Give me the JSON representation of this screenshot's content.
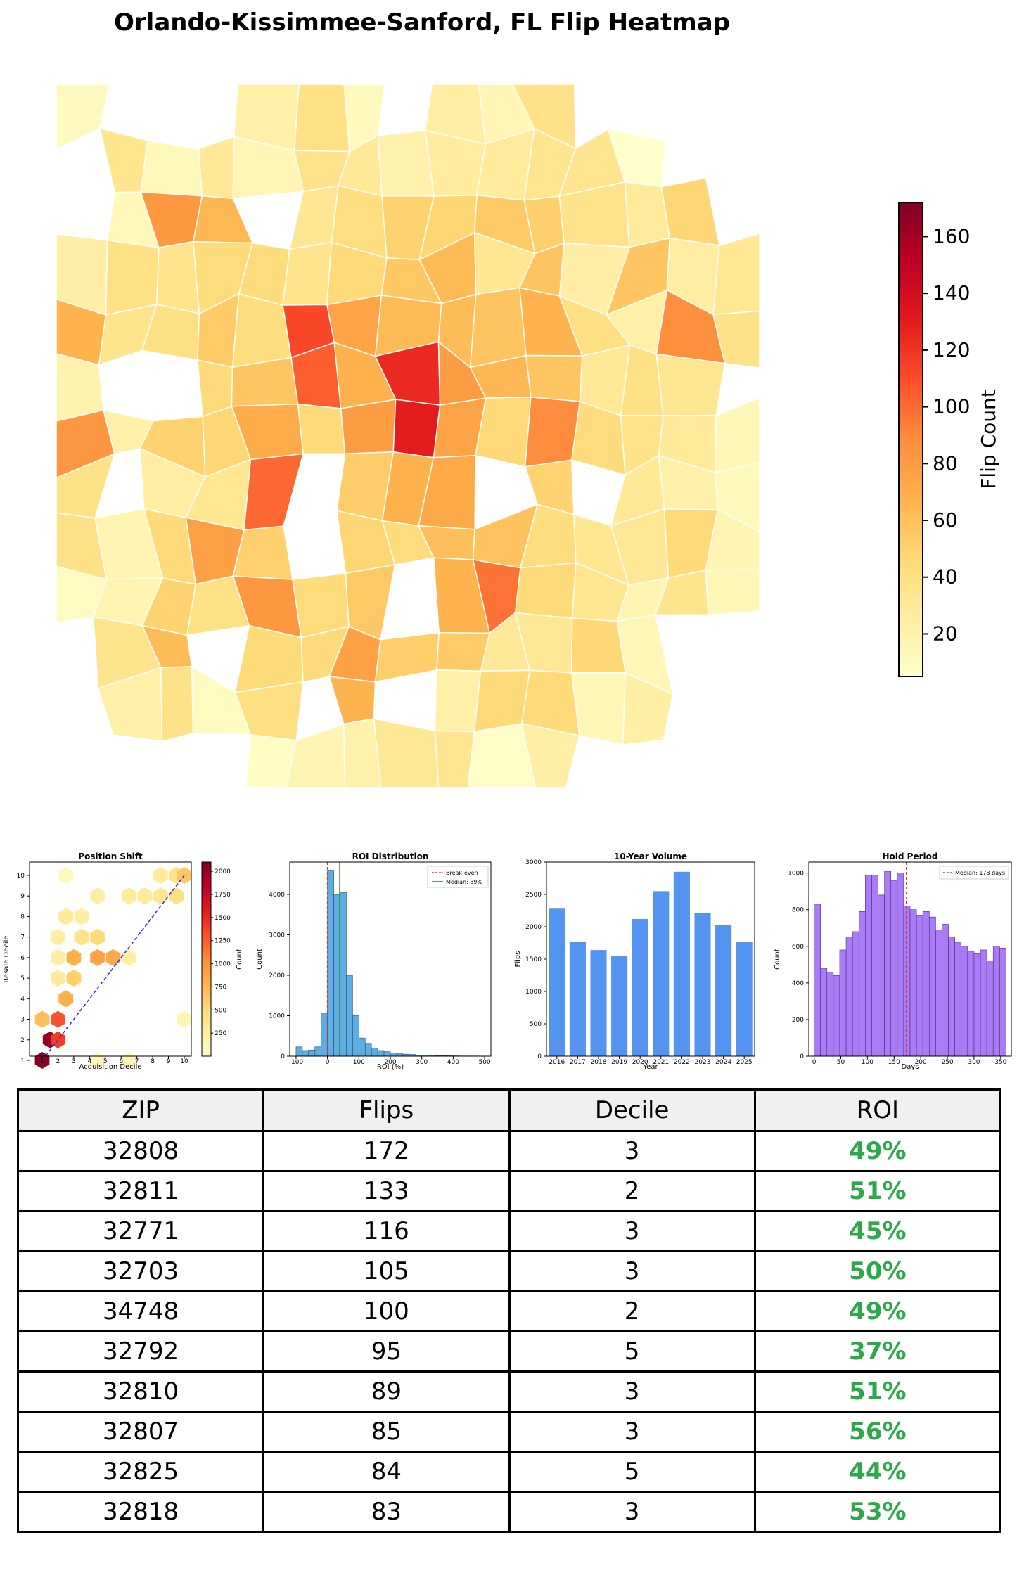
{
  "page_title": "Orlando-Kissimmee-Sanford, FL Flip Heatmap",
  "colors": {
    "scale": [
      "#ffffcc",
      "#ffeda0",
      "#fed976",
      "#feb24c",
      "#fd8d3c",
      "#fc4e2a",
      "#e31a1c",
      "#bd0026",
      "#800026"
    ],
    "roi_hist": "#5dade2",
    "volume_bar": "#5593f0",
    "hold_hist": "#a97cf5",
    "break_even": "#e03030",
    "median_roi": "#228b22",
    "median_hold": "#e03030",
    "roi_text": "#2aa84a"
  },
  "chart_data": [
    {
      "type": "heatmap",
      "title": "Orlando-Kissimmee-Sanford, FL Flip Heatmap",
      "colorbar_label": "Flip Count",
      "colorbar_range": [
        5,
        172
      ],
      "colorbar_ticks": [
        20,
        40,
        60,
        80,
        100,
        120,
        140,
        160
      ]
    },
    {
      "type": "heatmap",
      "title": "Position Shift",
      "xlabel": "Acquisition Decile",
      "ylabel": "Resale Decile",
      "colorbar_label": "Count",
      "colorbar_ticks": [
        250,
        500,
        750,
        1000,
        1250,
        1500,
        1750,
        2000
      ],
      "x_ticks": [
        1,
        2,
        3,
        4,
        5,
        6,
        7,
        8,
        9,
        10
      ],
      "y_ticks": [
        1,
        2,
        3,
        4,
        5,
        6,
        7,
        8,
        9,
        10
      ],
      "cells": [
        {
          "x": 1,
          "y": 1,
          "value": 2050
        },
        {
          "x": 1.5,
          "y": 2,
          "value": 2000
        },
        {
          "x": 2,
          "y": 2,
          "value": 1400
        },
        {
          "x": 1,
          "y": 3,
          "value": 700
        },
        {
          "x": 2,
          "y": 3,
          "value": 1300
        },
        {
          "x": 2.5,
          "y": 4,
          "value": 800
        },
        {
          "x": 3,
          "y": 5,
          "value": 600
        },
        {
          "x": 2,
          "y": 5,
          "value": 300
        },
        {
          "x": 2,
          "y": 6,
          "value": 250
        },
        {
          "x": 3,
          "y": 6,
          "value": 800
        },
        {
          "x": 4.5,
          "y": 6,
          "value": 900
        },
        {
          "x": 5.5,
          "y": 6,
          "value": 850
        },
        {
          "x": 6.5,
          "y": 6,
          "value": 250
        },
        {
          "x": 2,
          "y": 7,
          "value": 250
        },
        {
          "x": 3.5,
          "y": 7,
          "value": 400
        },
        {
          "x": 4.5,
          "y": 7,
          "value": 500
        },
        {
          "x": 2.5,
          "y": 8,
          "value": 300
        },
        {
          "x": 3.5,
          "y": 8,
          "value": 250
        },
        {
          "x": 4.5,
          "y": 9,
          "value": 250
        },
        {
          "x": 6.5,
          "y": 9,
          "value": 300
        },
        {
          "x": 7.5,
          "y": 9,
          "value": 300
        },
        {
          "x": 8.5,
          "y": 9,
          "value": 350
        },
        {
          "x": 9.5,
          "y": 9,
          "value": 450
        },
        {
          "x": 2.5,
          "y": 10,
          "value": 100
        },
        {
          "x": 8.5,
          "y": 10,
          "value": 300
        },
        {
          "x": 9.5,
          "y": 10,
          "value": 400
        },
        {
          "x": 10,
          "y": 10,
          "value": 650
        },
        {
          "x": 10,
          "y": 3,
          "value": 150
        },
        {
          "x": 4.5,
          "y": 1,
          "value": 120
        },
        {
          "x": 6.5,
          "y": 1,
          "value": 130
        }
      ]
    },
    {
      "type": "bar",
      "title": "ROI Distribution",
      "xlabel": "ROI (%)",
      "ylabel": "Count",
      "x_ticks": [
        -100,
        0,
        100,
        200,
        300,
        400,
        500
      ],
      "y_ticks": [
        0,
        1000,
        2000,
        3000,
        4000
      ],
      "xlim": [
        -120,
        520
      ],
      "ylim": [
        0,
        4800
      ],
      "bin_width": 20,
      "bin_starts": [
        -100,
        -80,
        -60,
        -40,
        -20,
        0,
        20,
        40,
        60,
        80,
        100,
        120,
        140,
        160,
        180,
        200,
        220,
        240,
        260,
        280,
        300,
        320,
        340,
        360,
        380,
        400,
        420,
        440,
        460,
        480
      ],
      "values": [
        230,
        140,
        150,
        230,
        1050,
        4600,
        4000,
        4050,
        2000,
        1000,
        450,
        300,
        200,
        140,
        110,
        80,
        60,
        50,
        40,
        30,
        25,
        20,
        15,
        12,
        10,
        8,
        6,
        5,
        5,
        4
      ],
      "legend": [
        "Break-even",
        "Median: 39%"
      ],
      "break_even": 0,
      "median": 39
    },
    {
      "type": "bar",
      "title": "10-Year Volume",
      "xlabel": "Year",
      "ylabel": "Flips",
      "categories": [
        "2016",
        "2017",
        "2018",
        "2019",
        "2020",
        "2021",
        "2022",
        "2023",
        "2024",
        "2025"
      ],
      "values": [
        2280,
        1770,
        1640,
        1550,
        2120,
        2550,
        2850,
        2210,
        2030,
        1770
      ],
      "y_ticks": [
        0,
        500,
        1000,
        1500,
        2000,
        2500,
        3000
      ],
      "ylim": [
        0,
        3000
      ]
    },
    {
      "type": "bar",
      "title": "Hold Period",
      "xlabel": "Days",
      "ylabel": "Count",
      "x_ticks": [
        0,
        50,
        100,
        150,
        200,
        250,
        300,
        350
      ],
      "y_ticks": [
        0,
        200,
        400,
        600,
        800,
        1000
      ],
      "xlim": [
        -10,
        370
      ],
      "ylim": [
        0,
        1060
      ],
      "bin_width": 12,
      "bin_starts": [
        0,
        12,
        24,
        36,
        48,
        60,
        72,
        84,
        96,
        108,
        120,
        132,
        144,
        156,
        168,
        180,
        192,
        204,
        216,
        228,
        240,
        252,
        264,
        276,
        288,
        300,
        312,
        324,
        336,
        348
      ],
      "values": [
        830,
        480,
        460,
        440,
        580,
        650,
        680,
        790,
        990,
        990,
        880,
        1010,
        960,
        1000,
        820,
        800,
        770,
        790,
        760,
        690,
        720,
        650,
        620,
        600,
        570,
        560,
        580,
        520,
        600,
        590
      ],
      "legend": [
        "Median: 173 days"
      ],
      "median": 173
    }
  ],
  "table": {
    "headers": [
      "ZIP",
      "Flips",
      "Decile",
      "ROI"
    ],
    "rows": [
      [
        "32808",
        "172",
        "3",
        "49%"
      ],
      [
        "32811",
        "133",
        "2",
        "51%"
      ],
      [
        "32771",
        "116",
        "3",
        "45%"
      ],
      [
        "32703",
        "105",
        "3",
        "50%"
      ],
      [
        "34748",
        "100",
        "2",
        "49%"
      ],
      [
        "32792",
        "95",
        "5",
        "37%"
      ],
      [
        "32810",
        "89",
        "3",
        "51%"
      ],
      [
        "32807",
        "85",
        "3",
        "56%"
      ],
      [
        "32825",
        "84",
        "5",
        "44%"
      ],
      [
        "32818",
        "83",
        "3",
        "53%"
      ]
    ]
  }
}
